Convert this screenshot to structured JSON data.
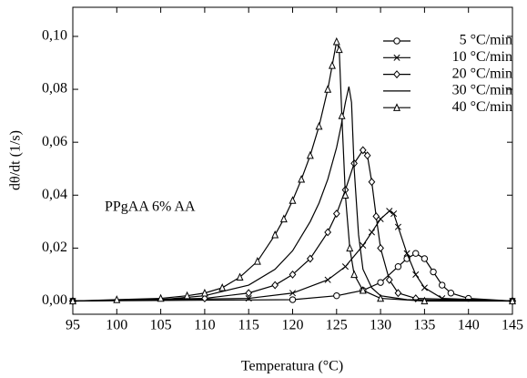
{
  "chart_data": {
    "type": "line",
    "xlabel": "Temperatura (°C)",
    "ylabel": "dθ/dt (1/s)",
    "annotation": "PPgAA 6% AA",
    "xlim": [
      95,
      145
    ],
    "xticks": [
      95,
      100,
      105,
      110,
      115,
      120,
      125,
      130,
      135,
      140,
      145
    ],
    "ylim": [
      -0.005,
      0.111
    ],
    "yticks": [
      {
        "value": 0,
        "label": "0,00"
      },
      {
        "value": 0.02,
        "label": "0,02"
      },
      {
        "value": 0.04,
        "label": "0,04"
      },
      {
        "value": 0.06,
        "label": "0,06"
      },
      {
        "value": 0.08,
        "label": "0,08"
      },
      {
        "value": 0.1,
        "label": "0,10"
      }
    ],
    "legend": "upper right",
    "series": [
      {
        "name": "5 °C/min",
        "color": "#000000",
        "marker": "circle",
        "x": [
          95,
          120,
          125,
          128,
          130,
          132,
          133,
          134,
          135,
          136,
          137,
          138,
          140,
          145
        ],
        "values": [
          0,
          0.0005,
          0.002,
          0.004,
          0.007,
          0.013,
          0.016,
          0.018,
          0.016,
          0.011,
          0.006,
          0.003,
          0.001,
          0
        ]
      },
      {
        "name": "10 °C/min",
        "color": "#000000",
        "marker": "x",
        "x": [
          95,
          115,
          120,
          124,
          126,
          128,
          129,
          130,
          131,
          131.5,
          132,
          133,
          134,
          135,
          137,
          145
        ],
        "values": [
          0,
          0.001,
          0.003,
          0.008,
          0.013,
          0.021,
          0.026,
          0.031,
          0.034,
          0.033,
          0.028,
          0.018,
          0.01,
          0.005,
          0.001,
          0
        ]
      },
      {
        "name": "20 °C/min",
        "color": "#000000",
        "marker": "diamond",
        "x": [
          95,
          110,
          115,
          118,
          120,
          122,
          124,
          125,
          126,
          127,
          128,
          128.5,
          129,
          129.5,
          130,
          131,
          132,
          134,
          145
        ],
        "values": [
          0,
          0.001,
          0.003,
          0.006,
          0.01,
          0.016,
          0.026,
          0.033,
          0.042,
          0.052,
          0.057,
          0.055,
          0.045,
          0.032,
          0.02,
          0.008,
          0.003,
          0.001,
          0
        ]
      },
      {
        "name": "30 °C/min",
        "color": "#000000",
        "marker": "none",
        "x": [
          95,
          105,
          110,
          115,
          118,
          120,
          122,
          123,
          124,
          125,
          125.5,
          126,
          126.4,
          126.7,
          127,
          127.5,
          128,
          129,
          130,
          133,
          145
        ],
        "values": [
          0,
          0.0005,
          0.002,
          0.006,
          0.012,
          0.019,
          0.03,
          0.037,
          0.046,
          0.058,
          0.066,
          0.075,
          0.081,
          0.075,
          0.05,
          0.025,
          0.012,
          0.005,
          0.002,
          0.0005,
          0
        ]
      },
      {
        "name": "40 °C/min",
        "color": "#000000",
        "marker": "triangle",
        "x": [
          95,
          100,
          105,
          108,
          110,
          112,
          114,
          116,
          118,
          119,
          120,
          121,
          122,
          123,
          124,
          124.5,
          125,
          125.3,
          125.6,
          126,
          126.5,
          127,
          128,
          130,
          135,
          145
        ],
        "values": [
          0,
          0.0005,
          0.001,
          0.002,
          0.003,
          0.005,
          0.009,
          0.015,
          0.025,
          0.031,
          0.038,
          0.046,
          0.055,
          0.066,
          0.08,
          0.089,
          0.098,
          0.095,
          0.07,
          0.04,
          0.02,
          0.01,
          0.004,
          0.001,
          0,
          0
        ]
      }
    ]
  }
}
